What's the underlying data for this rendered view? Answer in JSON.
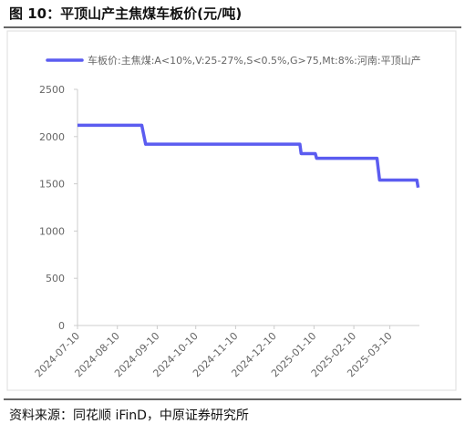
{
  "chart_data": {
    "type": "line",
    "title": "图 10：平顶山产主焦煤车板价(元/吨)",
    "source": "资料来源：同花顺 iFinD，中原证券研究所",
    "x": [
      "2024-07-10",
      "2024-08-29",
      "2024-09-01",
      "2024-12-30",
      "2024-12-31",
      "2025-01-11",
      "2025-01-12",
      "2025-02-28",
      "2025-03-02",
      "2025-03-31",
      "2025-04-01"
    ],
    "series": [
      {
        "name": "车板价:主焦煤:A<10%,V:25-27%,S<0.5%,G>75,Mt:8%:河南:平顶山产",
        "color": "#5b5cf0",
        "values": [
          2120,
          2120,
          1920,
          1920,
          1820,
          1820,
          1770,
          1770,
          1540,
          1540,
          1460
        ]
      }
    ],
    "xlim": [
      "2024-07-10",
      "2025-04-02"
    ],
    "xticks": [
      "2024-07-10",
      "2024-08-10",
      "2024-09-10",
      "2024-10-10",
      "2024-11-10",
      "2024-12-10",
      "2025-01-10",
      "2025-02-10",
      "2025-03-10"
    ],
    "ylim": [
      0,
      2500
    ],
    "yticks": [
      0,
      500,
      1000,
      1500,
      2000,
      2500
    ],
    "grid": false,
    "legend": "top"
  }
}
